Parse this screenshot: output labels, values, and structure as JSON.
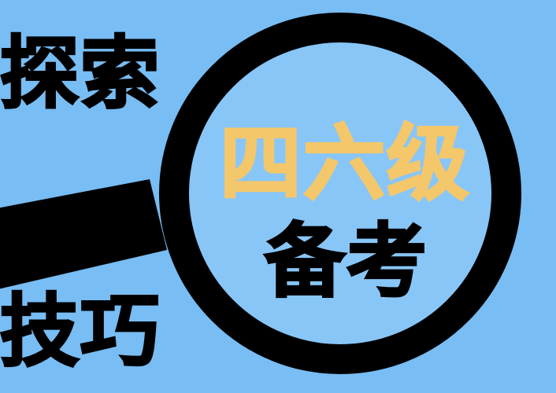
{
  "texts": {
    "explore": "探索",
    "skills": "技巧",
    "cet": "四六级",
    "prep": "备考"
  },
  "icons": {
    "magnifier": "magnifier-icon"
  },
  "colors": {
    "background": "#78bdf4",
    "lens": "#88c6f8",
    "frame": "#000000",
    "accent": "#f4c76a",
    "text": "#000000"
  }
}
